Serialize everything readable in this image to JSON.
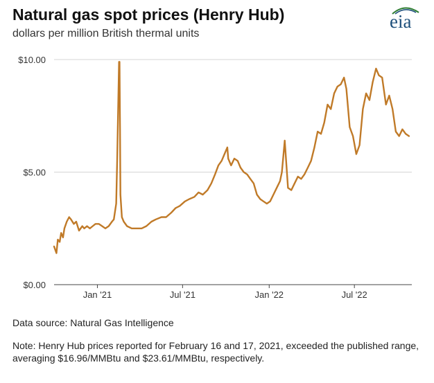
{
  "header": {
    "title": "Natural gas spot prices (Henry Hub)",
    "subtitle": "dollars per million British thermal units",
    "logo_text": "eia"
  },
  "chart_data": {
    "type": "line",
    "title": "Natural gas spot prices (Henry Hub)",
    "ylabel": "dollars per million British thermal units",
    "xlabel": "",
    "ylim": [
      0,
      10
    ],
    "xlim": [
      "2020-10-01",
      "2022-10-31"
    ],
    "y_ticks": [
      0,
      5,
      10
    ],
    "y_tick_labels": [
      "$0.00",
      "$5.00",
      "$10.00"
    ],
    "x_ticks": [
      "2021-01-01",
      "2021-07-01",
      "2022-01-01",
      "2022-07-01"
    ],
    "x_tick_labels": [
      "Jan '21",
      "Jul '21",
      "Jan '22",
      "Jul '22"
    ],
    "grid": "horizontal",
    "line_color": "#c07a28",
    "series": [
      {
        "x": [
          "2020-10-01",
          "2020-10-06",
          "2020-10-09",
          "2020-10-13",
          "2020-10-16",
          "2020-10-20",
          "2020-10-23",
          "2020-10-28",
          "2020-11-02",
          "2020-11-06",
          "2020-11-12",
          "2020-11-17",
          "2020-11-23",
          "2020-11-30",
          "2020-12-04",
          "2020-12-10",
          "2020-12-16",
          "2020-12-22",
          "2020-12-28",
          "2021-01-04",
          "2021-01-11",
          "2021-01-18",
          "2021-01-25",
          "2021-02-01",
          "2021-02-05",
          "2021-02-10",
          "2021-02-12",
          "2021-02-16",
          "2021-02-17",
          "2021-02-18",
          "2021-02-19",
          "2021-02-22",
          "2021-02-26",
          "2021-03-05",
          "2021-03-15",
          "2021-03-25",
          "2021-04-05",
          "2021-04-15",
          "2021-04-26",
          "2021-05-05",
          "2021-05-17",
          "2021-05-27",
          "2021-06-07",
          "2021-06-16",
          "2021-06-25",
          "2021-07-06",
          "2021-07-15",
          "2021-07-26",
          "2021-08-04",
          "2021-08-13",
          "2021-08-23",
          "2021-08-31",
          "2021-09-08",
          "2021-09-15",
          "2021-09-22",
          "2021-09-28",
          "2021-10-04",
          "2021-10-06",
          "2021-10-12",
          "2021-10-19",
          "2021-10-26",
          "2021-11-01",
          "2021-11-08",
          "2021-11-15",
          "2021-11-22",
          "2021-11-29",
          "2021-12-06",
          "2021-12-13",
          "2021-12-20",
          "2021-12-27",
          "2022-01-03",
          "2022-01-10",
          "2022-01-17",
          "2022-01-24",
          "2022-01-28",
          "2022-02-03",
          "2022-02-10",
          "2022-02-17",
          "2022-02-24",
          "2022-03-03",
          "2022-03-10",
          "2022-03-17",
          "2022-03-24",
          "2022-03-31",
          "2022-04-07",
          "2022-04-14",
          "2022-04-21",
          "2022-04-28",
          "2022-05-05",
          "2022-05-12",
          "2022-05-19",
          "2022-05-26",
          "2022-06-02",
          "2022-06-09",
          "2022-06-14",
          "2022-06-21",
          "2022-06-28",
          "2022-07-05",
          "2022-07-12",
          "2022-07-19",
          "2022-07-26",
          "2022-08-02",
          "2022-08-09",
          "2022-08-16",
          "2022-08-22",
          "2022-08-29",
          "2022-09-06",
          "2022-09-13",
          "2022-09-20",
          "2022-09-27",
          "2022-10-04",
          "2022-10-11",
          "2022-10-18",
          "2022-10-25"
        ],
        "values": [
          1.7,
          1.4,
          2.0,
          1.9,
          2.3,
          2.1,
          2.5,
          2.8,
          3.0,
          2.9,
          2.7,
          2.8,
          2.4,
          2.6,
          2.5,
          2.6,
          2.5,
          2.6,
          2.7,
          2.7,
          2.6,
          2.5,
          2.6,
          2.8,
          2.9,
          3.6,
          5.5,
          9.9,
          9.9,
          7.0,
          4.0,
          3.0,
          2.8,
          2.6,
          2.5,
          2.5,
          2.5,
          2.6,
          2.8,
          2.9,
          3.0,
          3.0,
          3.2,
          3.4,
          3.5,
          3.7,
          3.8,
          3.9,
          4.1,
          4.0,
          4.2,
          4.5,
          4.9,
          5.3,
          5.5,
          5.8,
          6.1,
          5.6,
          5.3,
          5.6,
          5.5,
          5.2,
          5.0,
          4.9,
          4.7,
          4.5,
          4.0,
          3.8,
          3.7,
          3.6,
          3.7,
          4.0,
          4.3,
          4.6,
          5.0,
          6.4,
          4.3,
          4.2,
          4.5,
          4.8,
          4.7,
          4.9,
          5.2,
          5.5,
          6.1,
          6.8,
          6.7,
          7.2,
          8.0,
          7.8,
          8.5,
          8.8,
          8.9,
          9.2,
          8.7,
          7.0,
          6.6,
          5.8,
          6.2,
          7.8,
          8.5,
          8.2,
          9.0,
          9.6,
          9.3,
          9.2,
          8.0,
          8.4,
          7.8,
          6.8,
          6.6,
          6.9,
          6.7,
          6.6
        ],
        "color": "#c07a28"
      }
    ]
  },
  "footer": {
    "source": "Data source: Natural Gas Intelligence",
    "note": "Note: Henry Hub prices reported for February 16 and 17, 2021, exceeded the published range, averaging $16.96/MMBtu and $23.61/MMBtu, respectively."
  }
}
